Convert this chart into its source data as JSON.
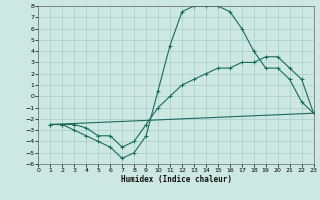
{
  "xlabel": "Humidex (Indice chaleur)",
  "background_color": "#cce8e0",
  "grid_color": "#aacccc",
  "line_color": "#1a6b5a",
  "xlim": [
    0,
    23
  ],
  "ylim": [
    -6,
    8
  ],
  "xticks": [
    0,
    1,
    2,
    3,
    4,
    5,
    6,
    7,
    8,
    9,
    10,
    11,
    12,
    13,
    14,
    15,
    16,
    17,
    18,
    19,
    20,
    21,
    22,
    23
  ],
  "yticks": [
    -6,
    -5,
    -4,
    -3,
    -2,
    -1,
    0,
    1,
    2,
    3,
    4,
    5,
    6,
    7,
    8
  ],
  "line1_x": [
    1,
    2,
    3,
    4,
    5,
    6,
    7,
    8,
    9,
    10,
    11,
    12,
    13,
    14,
    15,
    16,
    17,
    18,
    19,
    20,
    21,
    22,
    23
  ],
  "line1_y": [
    -2.5,
    -2.5,
    -3.0,
    -3.5,
    -4.0,
    -4.5,
    -5.5,
    -5.0,
    -3.5,
    0.5,
    4.5,
    7.5,
    8.0,
    8.0,
    8.0,
    7.5,
    6.0,
    4.0,
    2.5,
    2.5,
    1.5,
    -0.5,
    -1.5
  ],
  "line2_x": [
    1,
    2,
    3,
    4,
    5,
    6,
    7,
    8,
    9,
    10,
    11,
    12,
    13,
    14,
    15,
    16,
    17,
    18,
    19,
    20,
    21,
    22,
    23
  ],
  "line2_y": [
    -2.5,
    -2.5,
    -2.5,
    -2.8,
    -3.5,
    -3.5,
    -4.5,
    -4.0,
    -2.5,
    -1.0,
    0.0,
    1.0,
    1.5,
    2.0,
    2.5,
    2.5,
    3.0,
    3.0,
    3.5,
    3.5,
    2.5,
    1.5,
    -1.5
  ],
  "line3_x": [
    1,
    23
  ],
  "line3_y": [
    -2.5,
    -1.5
  ]
}
